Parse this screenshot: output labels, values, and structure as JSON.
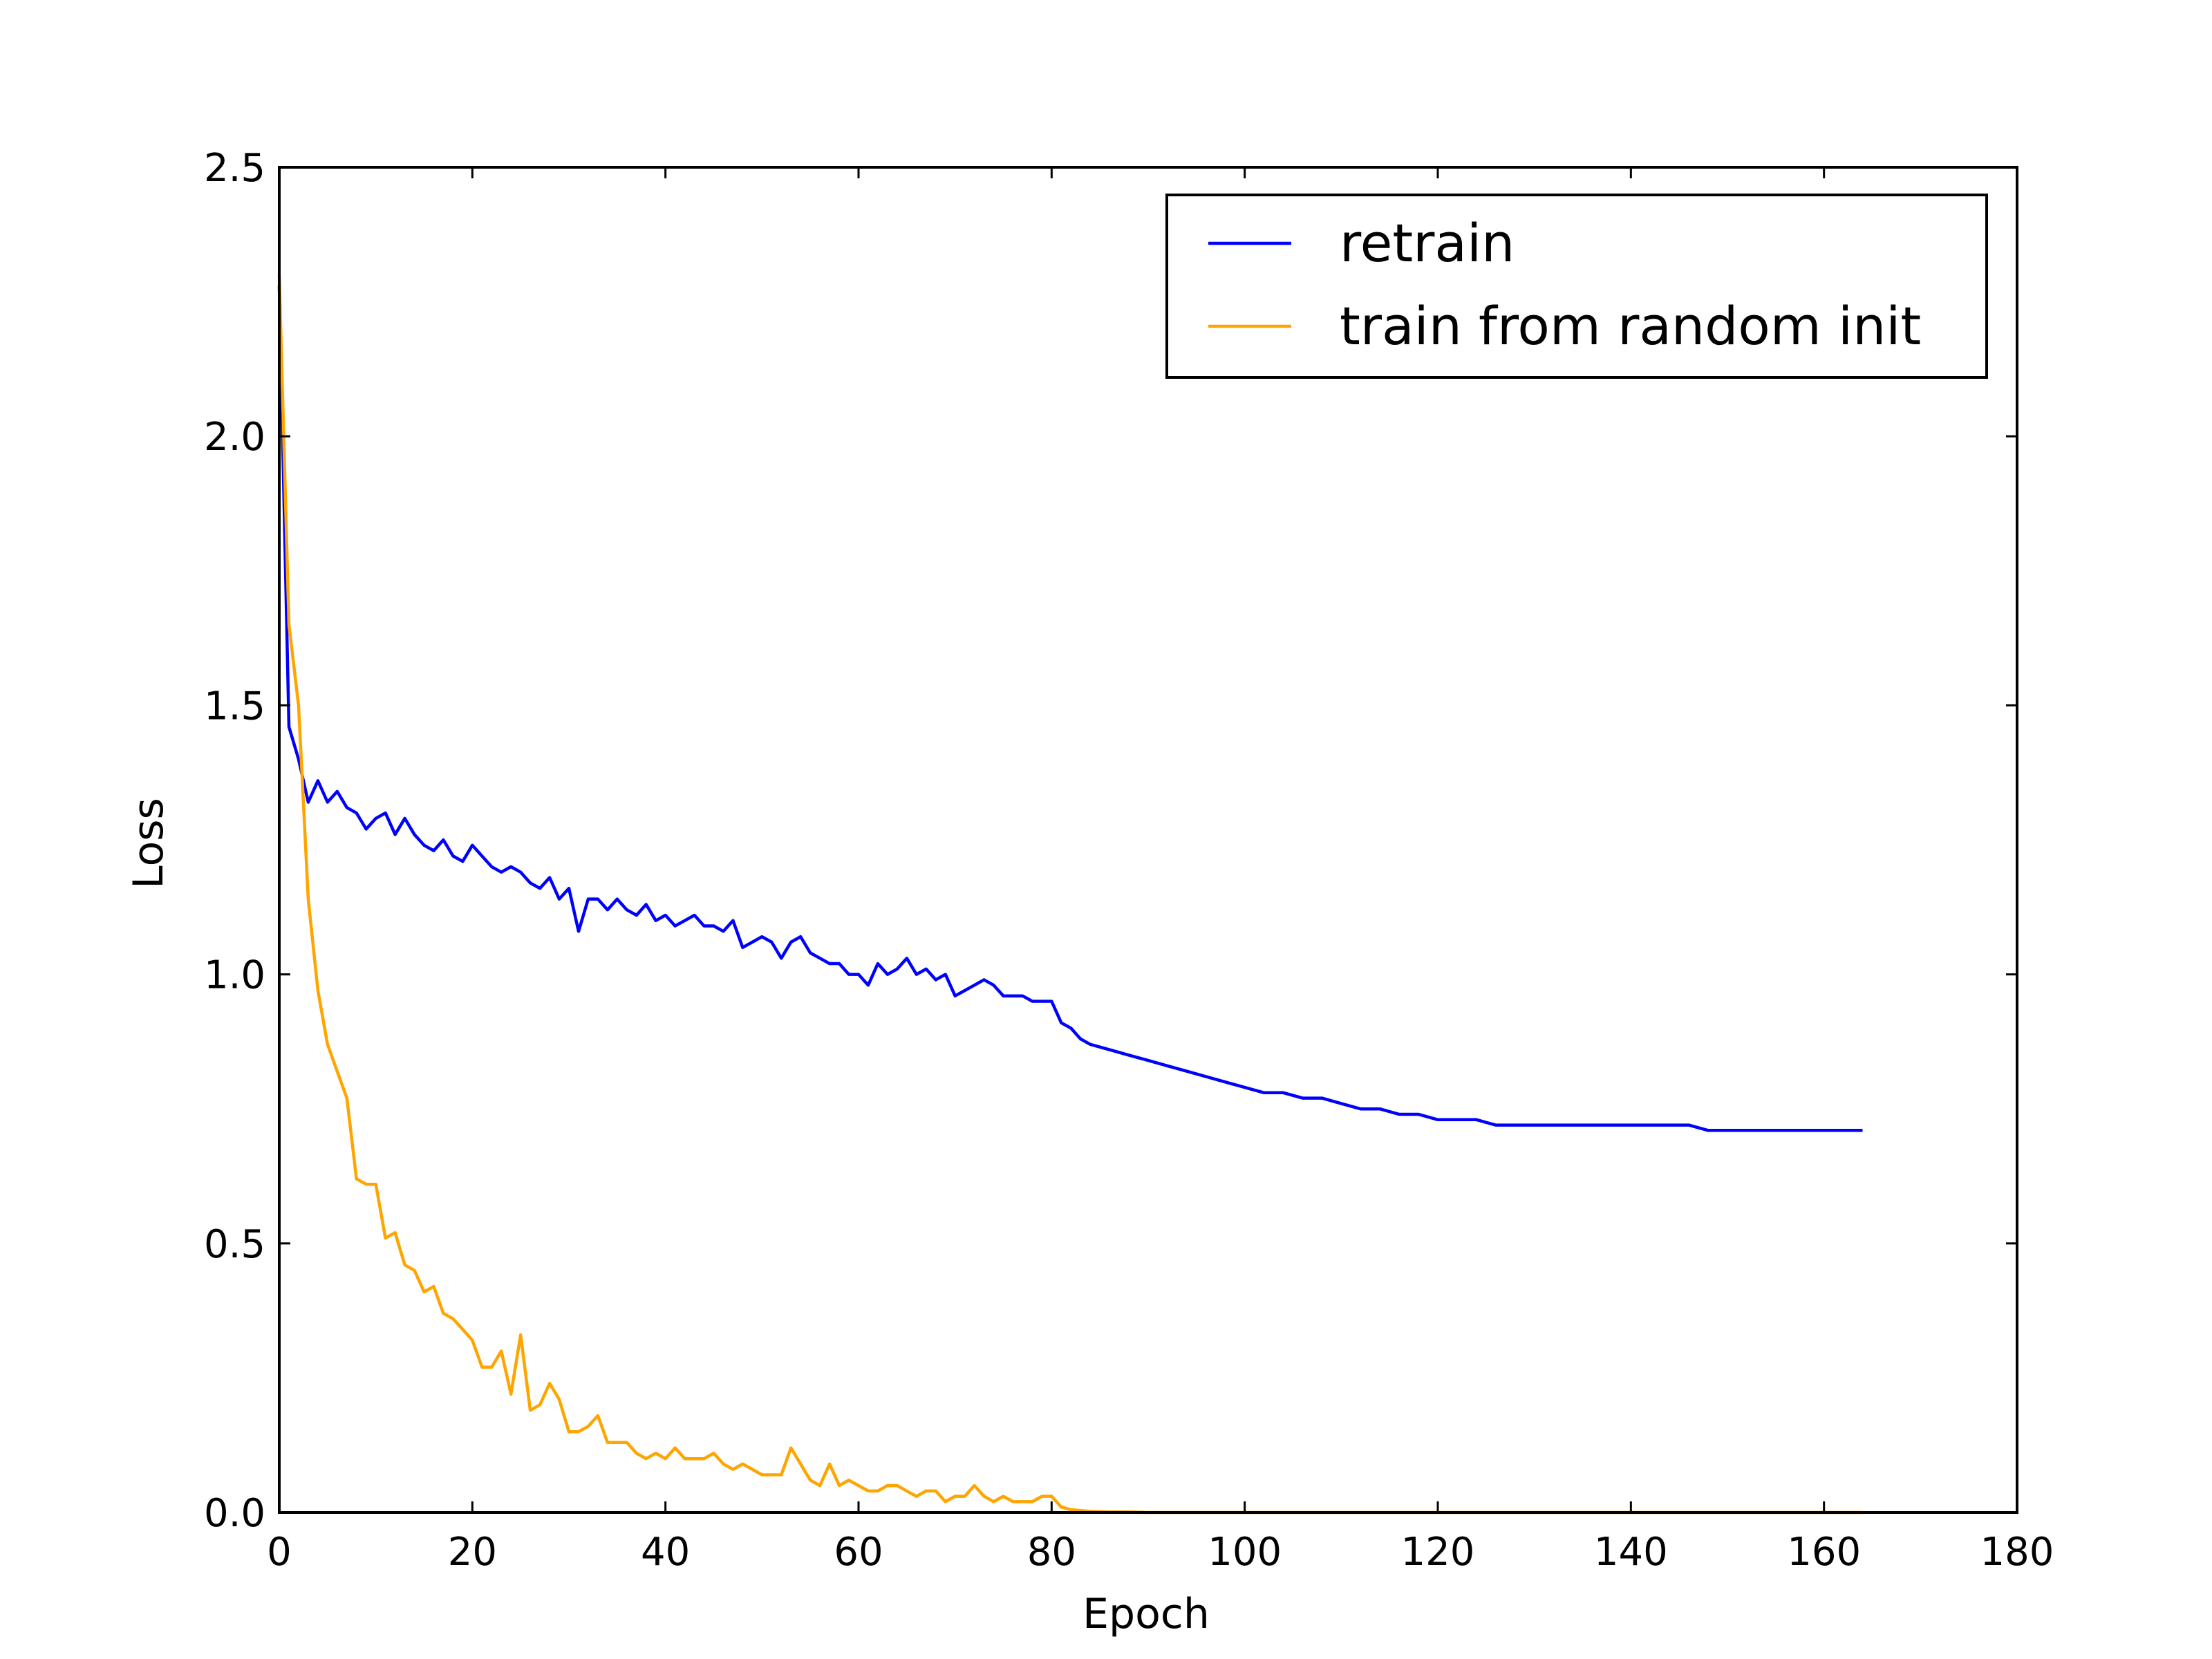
{
  "chart_data": {
    "type": "line",
    "xlabel": "Epoch",
    "ylabel": "Loss",
    "xlim": [
      0,
      180
    ],
    "ylim": [
      0.0,
      2.5
    ],
    "xticks": [
      0,
      20,
      40,
      60,
      80,
      100,
      120,
      140,
      160,
      180
    ],
    "yticks": [
      0.0,
      0.5,
      1.0,
      1.5,
      2.0,
      2.5
    ],
    "xtick_labels": [
      "0",
      "20",
      "40",
      "60",
      "80",
      "100",
      "120",
      "140",
      "160",
      "180"
    ],
    "ytick_labels": [
      "0.0",
      "0.5",
      "1.0",
      "1.5",
      "2.0",
      "2.5"
    ],
    "grid": false,
    "legend_position": "top-right",
    "series": [
      {
        "name": "retrain",
        "color": "#0000ff",
        "x": [
          0,
          1,
          2,
          3,
          4,
          5,
          6,
          7,
          8,
          9,
          10,
          11,
          12,
          13,
          14,
          15,
          16,
          17,
          18,
          19,
          20,
          21,
          22,
          23,
          24,
          25,
          26,
          27,
          28,
          29,
          30,
          31,
          32,
          33,
          34,
          35,
          36,
          37,
          38,
          39,
          40,
          41,
          42,
          43,
          44,
          45,
          46,
          47,
          48,
          49,
          50,
          51,
          52,
          53,
          54,
          55,
          56,
          57,
          58,
          59,
          60,
          61,
          62,
          63,
          64,
          65,
          66,
          67,
          68,
          69,
          70,
          71,
          72,
          73,
          74,
          75,
          76,
          77,
          78,
          79,
          80,
          81,
          82,
          83,
          84,
          86,
          88,
          90,
          92,
          94,
          96,
          98,
          100,
          102,
          104,
          106,
          108,
          110,
          112,
          114,
          116,
          118,
          120,
          122,
          124,
          126,
          128,
          130,
          132,
          134,
          136,
          138,
          140,
          142,
          144,
          146,
          148,
          150,
          152,
          154,
          156,
          158,
          160,
          162,
          164
        ],
        "y": [
          2.28,
          1.46,
          1.4,
          1.32,
          1.36,
          1.32,
          1.34,
          1.31,
          1.3,
          1.27,
          1.29,
          1.3,
          1.26,
          1.29,
          1.26,
          1.24,
          1.23,
          1.25,
          1.22,
          1.21,
          1.24,
          1.22,
          1.2,
          1.19,
          1.2,
          1.19,
          1.17,
          1.16,
          1.18,
          1.14,
          1.16,
          1.08,
          1.14,
          1.14,
          1.12,
          1.14,
          1.12,
          1.11,
          1.13,
          1.1,
          1.11,
          1.09,
          1.1,
          1.11,
          1.09,
          1.09,
          1.08,
          1.1,
          1.05,
          1.06,
          1.07,
          1.06,
          1.03,
          1.06,
          1.07,
          1.04,
          1.03,
          1.02,
          1.02,
          1.0,
          1.0,
          0.98,
          1.02,
          1.0,
          1.01,
          1.03,
          1.0,
          1.01,
          0.99,
          1.0,
          0.96,
          0.97,
          0.98,
          0.99,
          0.98,
          0.96,
          0.96,
          0.96,
          0.95,
          0.95,
          0.95,
          0.91,
          0.9,
          0.88,
          0.87,
          0.86,
          0.85,
          0.84,
          0.83,
          0.82,
          0.81,
          0.8,
          0.79,
          0.78,
          0.78,
          0.77,
          0.77,
          0.76,
          0.75,
          0.75,
          0.74,
          0.74,
          0.73,
          0.73,
          0.73,
          0.72,
          0.72,
          0.72,
          0.72,
          0.72,
          0.72,
          0.72,
          0.72,
          0.72,
          0.72,
          0.72,
          0.71,
          0.71,
          0.71,
          0.71,
          0.71,
          0.71,
          0.71,
          0.71,
          0.71
        ]
      },
      {
        "name": "train from random init",
        "color": "#ffa500",
        "x": [
          0,
          1,
          2,
          3,
          4,
          5,
          6,
          7,
          8,
          9,
          10,
          11,
          12,
          13,
          14,
          15,
          16,
          17,
          18,
          19,
          20,
          21,
          22,
          23,
          24,
          25,
          26,
          27,
          28,
          29,
          30,
          31,
          32,
          33,
          34,
          35,
          36,
          37,
          38,
          39,
          40,
          41,
          42,
          43,
          44,
          45,
          46,
          47,
          48,
          49,
          50,
          51,
          52,
          53,
          54,
          55,
          56,
          57,
          58,
          59,
          60,
          61,
          62,
          63,
          64,
          65,
          66,
          67,
          68,
          69,
          70,
          71,
          72,
          73,
          74,
          75,
          76,
          77,
          78,
          79,
          80,
          81,
          82,
          84,
          86,
          88,
          90,
          95,
          100,
          110,
          120,
          130,
          140,
          150,
          160,
          164
        ],
        "y": [
          2.3,
          1.65,
          1.5,
          1.14,
          0.97,
          0.87,
          0.82,
          0.77,
          0.62,
          0.61,
          0.61,
          0.51,
          0.52,
          0.46,
          0.45,
          0.41,
          0.42,
          0.37,
          0.36,
          0.34,
          0.32,
          0.27,
          0.27,
          0.3,
          0.22,
          0.33,
          0.19,
          0.2,
          0.24,
          0.21,
          0.15,
          0.15,
          0.16,
          0.18,
          0.13,
          0.13,
          0.13,
          0.11,
          0.1,
          0.11,
          0.1,
          0.12,
          0.1,
          0.1,
          0.1,
          0.11,
          0.09,
          0.08,
          0.09,
          0.08,
          0.07,
          0.07,
          0.07,
          0.12,
          0.09,
          0.06,
          0.05,
          0.09,
          0.05,
          0.06,
          0.05,
          0.04,
          0.04,
          0.05,
          0.05,
          0.04,
          0.03,
          0.04,
          0.04,
          0.02,
          0.03,
          0.03,
          0.05,
          0.03,
          0.02,
          0.03,
          0.02,
          0.02,
          0.02,
          0.03,
          0.03,
          0.01,
          0.005,
          0.002,
          0.001,
          0.001,
          0.0,
          0.0,
          0.0,
          0.0,
          0.0,
          0.0,
          0.0,
          0.0,
          0.0,
          0.0
        ]
      }
    ]
  }
}
